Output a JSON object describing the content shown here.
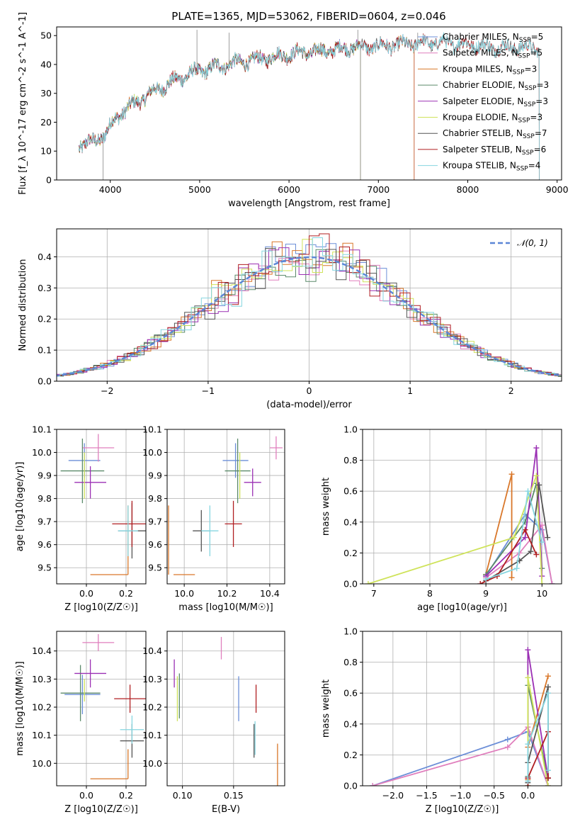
{
  "figure": {
    "title": "PLATE=1365, MJD=53062, FIBERID=0604, z=0.046"
  },
  "colors": {
    "Chabrier MILES": "#6c8fd8",
    "Salpeter MILES": "#e07fbd",
    "Kroupa MILES": "#d9772a",
    "Chabrier ELODIE": "#5b8a6a",
    "Salpeter ELODIE": "#9b30b4",
    "Kroupa ELODIE": "#cfe35a",
    "Chabrier STELIB": "#555555",
    "Salpeter STELIB": "#b01f22",
    "Kroupa STELIB": "#86d6e0"
  },
  "chart_data": [
    {
      "id": "spectrum",
      "type": "line",
      "xlabel": "wavelength [Angstrom, rest frame]",
      "ylabel": "Flux [f_λ 10^-17 erg cm^-2 s^-1 A^-1]",
      "xlim": [
        3400,
        9050
      ],
      "ylim": [
        0,
        53
      ],
      "xticks": [
        4000,
        5000,
        6000,
        7000,
        8000,
        9000
      ],
      "yticks": [
        0,
        10,
        20,
        30,
        40,
        50
      ],
      "legend_position": "upper-right",
      "legend": [
        {
          "name": "Chabrier MILES",
          "sub": "SSP",
          "n": "5"
        },
        {
          "name": "Salpeter MILES",
          "sub": "SSP",
          "n": "5"
        },
        {
          "name": "Kroupa MILES",
          "sub": "SSP",
          "n": "3"
        },
        {
          "name": "Chabrier ELODIE",
          "sub": "SSP",
          "n": "3"
        },
        {
          "name": "Salpeter ELODIE",
          "sub": "SSP",
          "n": "3"
        },
        {
          "name": "Kroupa ELODIE",
          "sub": "SSP",
          "n": "3"
        },
        {
          "name": "Chabrier STELIB",
          "sub": "SSP",
          "n": "7"
        },
        {
          "name": "Salpeter STELIB",
          "sub": "SSP",
          "n": "6"
        },
        {
          "name": "Kroupa STELIB",
          "sub": "SSP",
          "n": "4"
        }
      ],
      "continuum": [
        [
          3650,
          12
        ],
        [
          3800,
          13
        ],
        [
          3950,
          16
        ],
        [
          4050,
          21
        ],
        [
          4150,
          24
        ],
        [
          4300,
          27
        ],
        [
          4500,
          31
        ],
        [
          4700,
          34
        ],
        [
          4900,
          37
        ],
        [
          5100,
          38.5
        ],
        [
          5300,
          40
        ],
        [
          5500,
          41
        ],
        [
          5700,
          42
        ],
        [
          5900,
          43
        ],
        [
          6100,
          44
        ],
        [
          6300,
          44.5
        ],
        [
          6500,
          45
        ],
        [
          6700,
          46
        ],
        [
          6900,
          46
        ],
        [
          7100,
          46.5
        ],
        [
          7300,
          47
        ],
        [
          7500,
          47.5
        ],
        [
          7700,
          47.5
        ],
        [
          8000,
          47
        ],
        [
          8300,
          46
        ],
        [
          8600,
          46
        ],
        [
          8800,
          45.5
        ]
      ],
      "model_ranges": {
        "Chabrier MILES": [
          3650,
          7400
        ],
        "Salpeter MILES": [
          3650,
          7400
        ],
        "Kroupa MILES": [
          3650,
          7400
        ],
        "Chabrier ELODIE": [
          3650,
          6800
        ],
        "Salpeter ELODIE": [
          3650,
          6800
        ],
        "Kroupa ELODIE": [
          3650,
          6800
        ],
        "Chabrier STELIB": [
          3650,
          8800
        ],
        "Salpeter STELIB": [
          3650,
          8800
        ],
        "Kroupa STELIB": [
          3650,
          8800
        ]
      }
    },
    {
      "id": "residuals",
      "type": "histogram",
      "xlabel": "(data-model)/error",
      "ylabel": "Normed distribution",
      "xlim": [
        -2.5,
        2.5
      ],
      "ylim": [
        0,
        0.49
      ],
      "xticks": [
        -2,
        -1,
        0,
        1,
        2
      ],
      "yticks": [
        0.0,
        0.1,
        0.2,
        0.3,
        0.4
      ],
      "bin_width": 0.1,
      "reference_curve": {
        "name": "𝒩(0, 1)",
        "mean": 0,
        "sigma": 1
      }
    },
    {
      "id": "age-vs-Z",
      "type": "errorbar",
      "xlabel": "Z [log10(Z/Z☉)]",
      "ylabel": "age  [log10(age/yr)]",
      "xlim": [
        -0.15,
        0.3
      ],
      "ylim": [
        9.43,
        10.1
      ],
      "xticks": [
        0.0,
        0.2
      ],
      "yticks": [
        9.5,
        9.6,
        9.7,
        9.8,
        9.9,
        10.0,
        10.1
      ],
      "points": [
        {
          "series": "Chabrier MILES",
          "x": -0.01,
          "xerr": 0.08,
          "y": 9.965,
          "yerr": 0.075
        },
        {
          "series": "Salpeter MILES",
          "x": 0.06,
          "xerr": 0.08,
          "y": 10.02,
          "yerr": 0.06
        },
        {
          "series": "Kroupa MILES",
          "x": 0.21,
          "xerr": 0.0,
          "y": 9.47,
          "yerr": 0.0,
          "corner": {
            "xfrom": 0.02,
            "yto": 9.77
          }
        },
        {
          "series": "Chabrier ELODIE",
          "x": -0.02,
          "xerr": 0.11,
          "y": 9.92,
          "yerr": 0.14
        },
        {
          "series": "Salpeter ELODIE",
          "x": 0.02,
          "xerr": 0.08,
          "y": 9.87,
          "yerr": 0.07
        },
        {
          "series": "Kroupa ELODIE",
          "x": -0.01,
          "xerr": 0.0,
          "y": 9.9,
          "yerr": 0.1
        },
        {
          "series": "Chabrier STELIB",
          "x": 0.23,
          "xerr": 0.07,
          "y": 9.66,
          "yerr": 0.12
        },
        {
          "series": "Salpeter STELIB",
          "x": 0.23,
          "xerr": 0.1,
          "y": 9.69,
          "yerr": 0.1
        },
        {
          "series": "Kroupa STELIB",
          "x": 0.21,
          "xerr": 0.05,
          "y": 9.66,
          "yerr": 0.11
        }
      ]
    },
    {
      "id": "age-vs-mass",
      "type": "errorbar",
      "xlabel": "mass [log10(M/M☉)]",
      "ylabel": "",
      "xlim": [
        9.92,
        10.47
      ],
      "ylim": [
        9.43,
        10.1
      ],
      "xticks": [
        10.0,
        10.2,
        10.4
      ],
      "yticks": [
        9.5,
        9.6,
        9.7,
        9.8,
        9.9,
        10.0,
        10.1
      ],
      "points": [
        {
          "series": "Chabrier MILES",
          "x": 10.24,
          "xerr": 0.06,
          "y": 9.965,
          "yerr": 0.075
        },
        {
          "series": "Salpeter MILES",
          "x": 10.43,
          "xerr": 0.03,
          "y": 10.02,
          "yerr": 0.05
        },
        {
          "series": "Kroupa MILES",
          "x": 9.95,
          "xerr": 0.0,
          "y": 9.47,
          "yerr": 0.0,
          "corner": {
            "xto": 10.05,
            "yto": 9.77
          }
        },
        {
          "series": "Chabrier ELODIE",
          "x": 10.25,
          "xerr": 0.06,
          "y": 9.92,
          "yerr": 0.14
        },
        {
          "series": "Salpeter ELODIE",
          "x": 10.32,
          "xerr": 0.04,
          "y": 9.87,
          "yerr": 0.06
        },
        {
          "series": "Kroupa ELODIE",
          "x": 10.26,
          "xerr": 0.0,
          "y": 9.9,
          "yerr": 0.1
        },
        {
          "series": "Chabrier STELIB",
          "x": 10.08,
          "xerr": 0.04,
          "y": 9.66,
          "yerr": 0.09
        },
        {
          "series": "Salpeter STELIB",
          "x": 10.23,
          "xerr": 0.04,
          "y": 9.69,
          "yerr": 0.1
        },
        {
          "series": "Kroupa STELIB",
          "x": 10.12,
          "xerr": 0.04,
          "y": 9.66,
          "yerr": 0.11
        }
      ]
    },
    {
      "id": "weight-vs-age",
      "type": "line",
      "xlabel": "age  [log10(age/yr)]",
      "ylabel": "mass weight",
      "xlim": [
        6.8,
        10.35
      ],
      "ylim": [
        0,
        1.0
      ],
      "xticks": [
        7,
        8,
        9,
        10
      ],
      "yticks": [
        0.0,
        0.2,
        0.4,
        0.6,
        0.8,
        1.0
      ],
      "series": [
        {
          "name": "Chabrier MILES",
          "points": [
            [
              9.0,
              0.05
            ],
            [
              9.7,
              0.45
            ],
            [
              10.0,
              0.35
            ],
            [
              10.18,
              0.0
            ]
          ]
        },
        {
          "name": "Salpeter MILES",
          "points": [
            [
              9.0,
              0.04
            ],
            [
              9.6,
              0.2
            ],
            [
              10.0,
              0.38
            ],
            [
              10.18,
              0.0
            ]
          ]
        },
        {
          "name": "Kroupa MILES",
          "points": [
            [
              9.0,
              0.06
            ],
            [
              9.46,
              0.71
            ],
            [
              9.46,
              0.04
            ]
          ]
        },
        {
          "name": "Chabrier ELODIE",
          "points": [
            [
              9.0,
              0.06
            ],
            [
              9.7,
              0.4
            ],
            [
              9.9,
              0.65
            ],
            [
              10.0,
              0.1
            ]
          ]
        },
        {
          "name": "Salpeter ELODIE",
          "points": [
            [
              9.0,
              0.05
            ],
            [
              9.7,
              0.3
            ],
            [
              9.9,
              0.88
            ],
            [
              10.0,
              0.05
            ]
          ]
        },
        {
          "name": "Kroupa ELODIE",
          "points": [
            [
              6.9,
              0.0
            ],
            [
              9.5,
              0.3
            ],
            [
              9.9,
              0.7
            ],
            [
              10.0,
              0.0
            ]
          ]
        },
        {
          "name": "Chabrier STELIB",
          "points": [
            [
              9.0,
              0.02
            ],
            [
              9.6,
              0.15
            ],
            [
              9.8,
              0.21
            ],
            [
              9.95,
              0.64
            ],
            [
              10.1,
              0.3
            ]
          ]
        },
        {
          "name": "Salpeter STELIB",
          "points": [
            [
              8.9,
              0.0
            ],
            [
              9.2,
              0.05
            ],
            [
              9.7,
              0.35
            ],
            [
              9.9,
              0.19
            ]
          ]
        },
        {
          "name": "Kroupa STELIB",
          "points": [
            [
              9.0,
              0.03
            ],
            [
              9.55,
              0.1
            ],
            [
              9.75,
              0.6
            ],
            [
              10.0,
              0.27
            ]
          ]
        }
      ]
    },
    {
      "id": "mass-vs-Z",
      "type": "errorbar",
      "xlabel": "Z [log10(Z/Z☉)]",
      "ylabel": "mass [log10(M/M☉)]",
      "xlim": [
        -0.15,
        0.3
      ],
      "ylim": [
        9.92,
        10.47
      ],
      "xticks": [
        0.0,
        0.2
      ],
      "yticks": [
        10.0,
        10.1,
        10.2,
        10.3,
        10.4
      ],
      "points": [
        {
          "series": "Chabrier MILES",
          "x": -0.02,
          "xerr": 0.09,
          "y": 10.245,
          "yerr": 0.07
        },
        {
          "series": "Salpeter MILES",
          "x": 0.06,
          "xerr": 0.08,
          "y": 10.43,
          "yerr": 0.03
        },
        {
          "series": "Kroupa MILES",
          "x": 0.21,
          "xerr": 0.0,
          "y": 9.945,
          "yerr": 0.0,
          "corner": {
            "xfrom": 0.02,
            "yto": 10.05
          }
        },
        {
          "series": "Chabrier ELODIE",
          "x": -0.03,
          "xerr": 0.1,
          "y": 10.25,
          "yerr": 0.1
        },
        {
          "series": "Salpeter ELODIE",
          "x": 0.02,
          "xerr": 0.08,
          "y": 10.32,
          "yerr": 0.05
        },
        {
          "series": "Kroupa ELODIE",
          "x": -0.01,
          "xerr": 0.0,
          "y": 10.26,
          "yerr": 0.04
        },
        {
          "series": "Chabrier STELIB",
          "x": 0.23,
          "xerr": 0.06,
          "y": 10.08,
          "yerr": 0.06
        },
        {
          "series": "Salpeter STELIB",
          "x": 0.22,
          "xerr": 0.08,
          "y": 10.23,
          "yerr": 0.05
        },
        {
          "series": "Kroupa STELIB",
          "x": 0.23,
          "xerr": 0.06,
          "y": 10.12,
          "yerr": 0.05
        }
      ]
    },
    {
      "id": "mass-vs-ebv",
      "type": "errorbar",
      "xlabel": "E(B-V)",
      "ylabel": "",
      "xlim": [
        0.085,
        0.2
      ],
      "ylim": [
        9.92,
        10.47
      ],
      "xticks": [
        0.1,
        0.15
      ],
      "yticks": [
        10.0,
        10.1,
        10.2,
        10.3,
        10.4
      ],
      "points": [
        {
          "series": "Chabrier MILES",
          "x": 0.155,
          "xerr": 0.0,
          "y": 10.23,
          "yerr": 0.08
        },
        {
          "series": "Salpeter MILES",
          "x": 0.138,
          "xerr": 0.0,
          "y": 10.41,
          "yerr": 0.04
        },
        {
          "series": "Kroupa MILES",
          "x": 0.193,
          "xerr": 0.0,
          "y": 9.99,
          "yerr": 0.08
        },
        {
          "series": "Chabrier ELODIE",
          "x": 0.097,
          "xerr": 0.0,
          "y": 10.24,
          "yerr": 0.08
        },
        {
          "series": "Salpeter ELODIE",
          "x": 0.092,
          "xerr": 0.0,
          "y": 10.32,
          "yerr": 0.05
        },
        {
          "series": "Kroupa ELODIE",
          "x": 0.095,
          "xerr": 0.0,
          "y": 10.23,
          "yerr": 0.08
        },
        {
          "series": "Chabrier STELIB",
          "x": 0.17,
          "xerr": 0.0,
          "y": 10.08,
          "yerr": 0.06
        },
        {
          "series": "Salpeter STELIB",
          "x": 0.172,
          "xerr": 0.0,
          "y": 10.23,
          "yerr": 0.05
        },
        {
          "series": "Kroupa STELIB",
          "x": 0.171,
          "xerr": 0.0,
          "y": 10.09,
          "yerr": 0.06
        }
      ]
    },
    {
      "id": "weight-vs-Z",
      "type": "line",
      "xlabel": "Z [log10(Z/Z☉)]",
      "ylabel": "mass weight",
      "xlim": [
        -2.45,
        0.5
      ],
      "ylim": [
        0,
        1.0
      ],
      "xticks": [
        -2.0,
        -1.5,
        -1.0,
        -0.5,
        0.0
      ],
      "yticks": [
        0.0,
        0.2,
        0.4,
        0.6,
        0.8,
        1.0
      ],
      "series": [
        {
          "name": "Chabrier MILES",
          "points": [
            [
              -2.3,
              0.0
            ],
            [
              -0.3,
              0.3
            ],
            [
              0.0,
              0.35
            ],
            [
              0.3,
              0.0
            ]
          ]
        },
        {
          "name": "Salpeter MILES",
          "points": [
            [
              -2.3,
              0.0
            ],
            [
              -0.3,
              0.25
            ],
            [
              0.0,
              0.38
            ],
            [
              0.3,
              0.0
            ]
          ]
        },
        {
          "name": "Kroupa MILES",
          "points": [
            [
              -0.0,
              0.04
            ],
            [
              0.0,
              0.25
            ],
            [
              0.3,
              0.71
            ]
          ]
        },
        {
          "name": "Chabrier ELODIE",
          "points": [
            [
              0.0,
              0.06
            ],
            [
              0.0,
              0.65
            ],
            [
              0.3,
              0.05
            ]
          ]
        },
        {
          "name": "Salpeter ELODIE",
          "points": [
            [
              0.0,
              0.05
            ],
            [
              0.0,
              0.88
            ],
            [
              0.3,
              0.05
            ]
          ]
        },
        {
          "name": "Kroupa ELODIE",
          "points": [
            [
              0.0,
              0.0
            ],
            [
              0.0,
              0.7
            ],
            [
              0.3,
              0.0
            ]
          ]
        },
        {
          "name": "Chabrier STELIB",
          "points": [
            [
              0.0,
              0.02
            ],
            [
              0.0,
              0.15
            ],
            [
              0.3,
              0.64
            ],
            [
              0.3,
              0.05
            ]
          ]
        },
        {
          "name": "Salpeter STELIB",
          "points": [
            [
              0.0,
              0.0
            ],
            [
              0.0,
              0.05
            ],
            [
              0.3,
              0.35
            ],
            [
              0.3,
              0.05
            ]
          ]
        },
        {
          "name": "Kroupa STELIB",
          "points": [
            [
              0.0,
              0.03
            ],
            [
              0.0,
              0.27
            ],
            [
              0.3,
              0.6
            ],
            [
              0.3,
              0.1
            ]
          ]
        }
      ]
    }
  ]
}
